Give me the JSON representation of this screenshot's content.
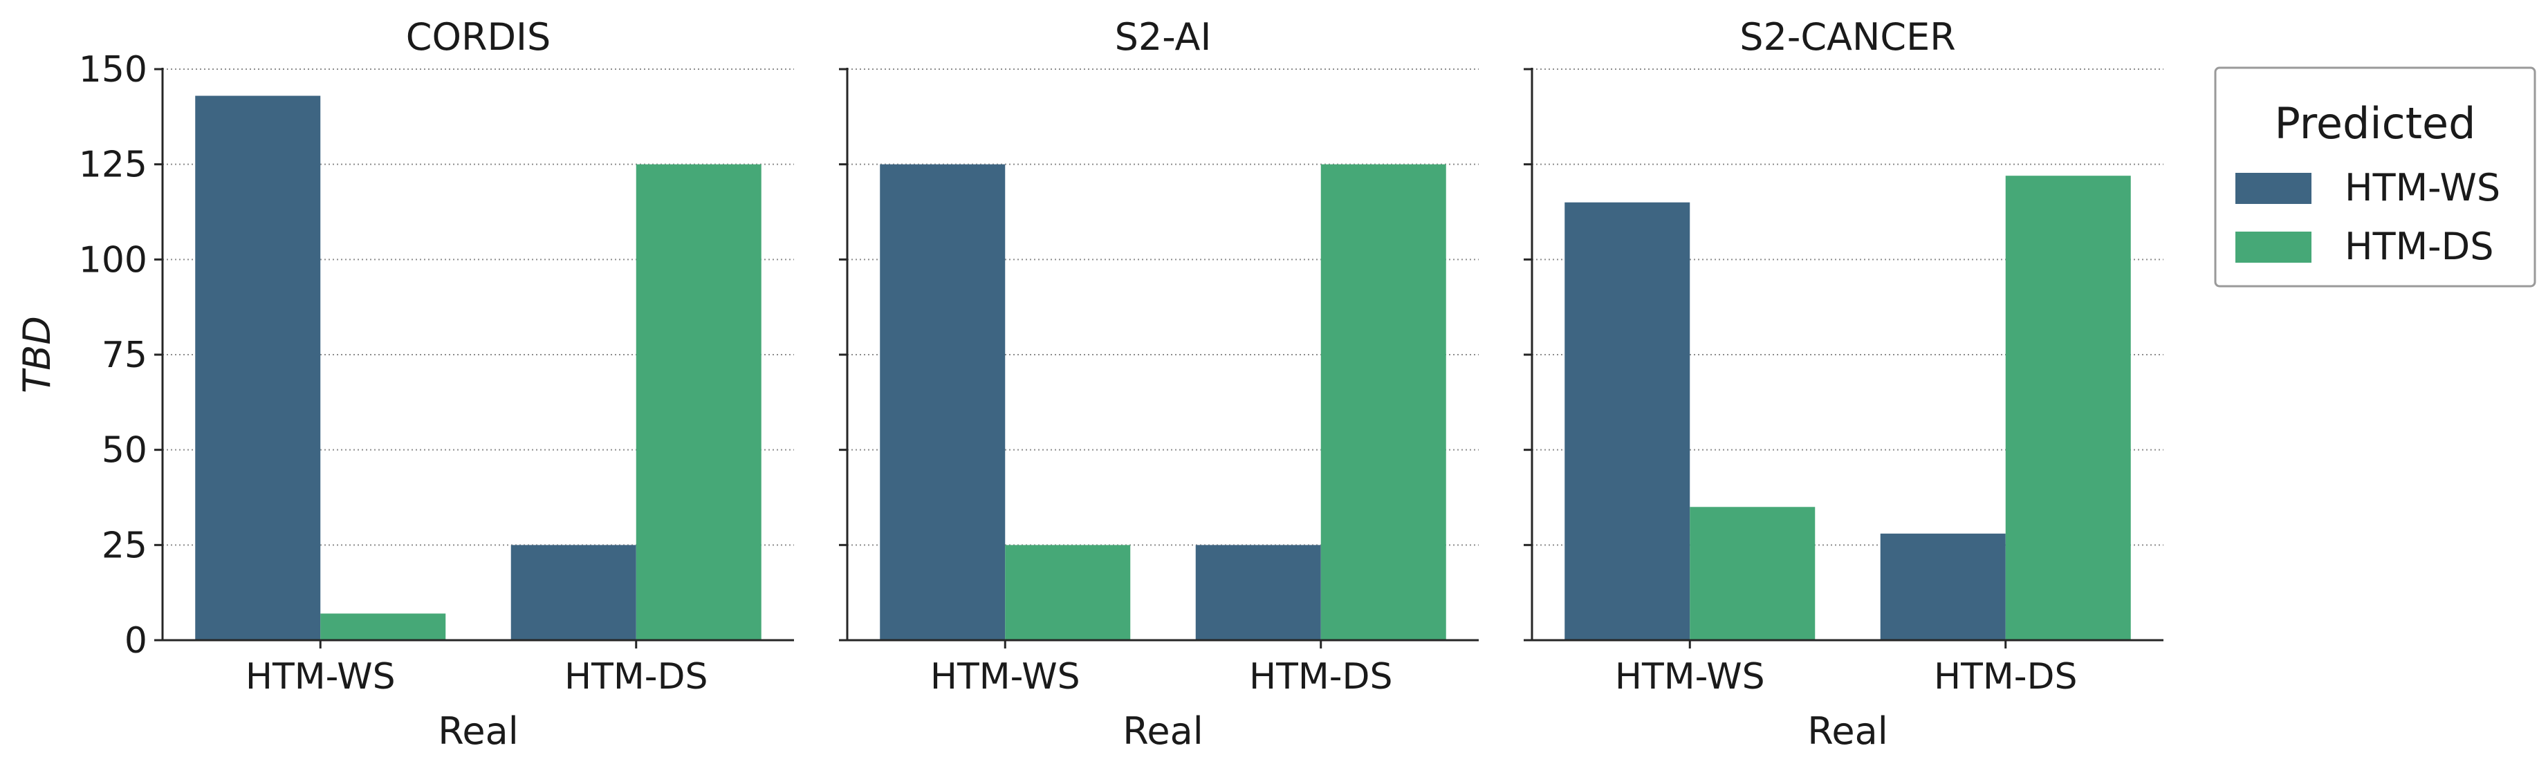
{
  "chart_data": [
    {
      "type": "bar",
      "title": "CORDIS",
      "xlabel": "Real",
      "ylabel": "TBD",
      "categories": [
        "HTM-WS",
        "HTM-DS"
      ],
      "series": [
        {
          "name": "HTM-WS",
          "values": [
            143,
            25
          ]
        },
        {
          "name": "HTM-DS",
          "values": [
            7,
            125
          ]
        }
      ],
      "ylim": [
        0,
        150
      ],
      "yticks": [
        "0",
        "25",
        "50",
        "75",
        "100",
        "125",
        "150"
      ]
    },
    {
      "type": "bar",
      "title": "S2-AI",
      "xlabel": "Real",
      "categories": [
        "HTM-WS",
        "HTM-DS"
      ],
      "series": [
        {
          "name": "HTM-WS",
          "values": [
            125,
            25
          ]
        },
        {
          "name": "HTM-DS",
          "values": [
            25,
            125
          ]
        }
      ],
      "ylim": [
        0,
        150
      ]
    },
    {
      "type": "bar",
      "title": "S2-CANCER",
      "xlabel": "Real",
      "categories": [
        "HTM-WS",
        "HTM-DS"
      ],
      "series": [
        {
          "name": "HTM-WS",
          "values": [
            115,
            28
          ]
        },
        {
          "name": "HTM-DS",
          "values": [
            35,
            122
          ]
        }
      ],
      "ylim": [
        0,
        150
      ]
    }
  ],
  "legend": {
    "title": "Predicted",
    "placement": "right",
    "entries": [
      {
        "label": "HTM-WS",
        "color": "#3e6582"
      },
      {
        "label": "HTM-DS",
        "color": "#46a877"
      }
    ]
  },
  "style": {
    "grid": "horizontal dotted",
    "series_colors": [
      "#3e6582",
      "#46a877"
    ]
  }
}
